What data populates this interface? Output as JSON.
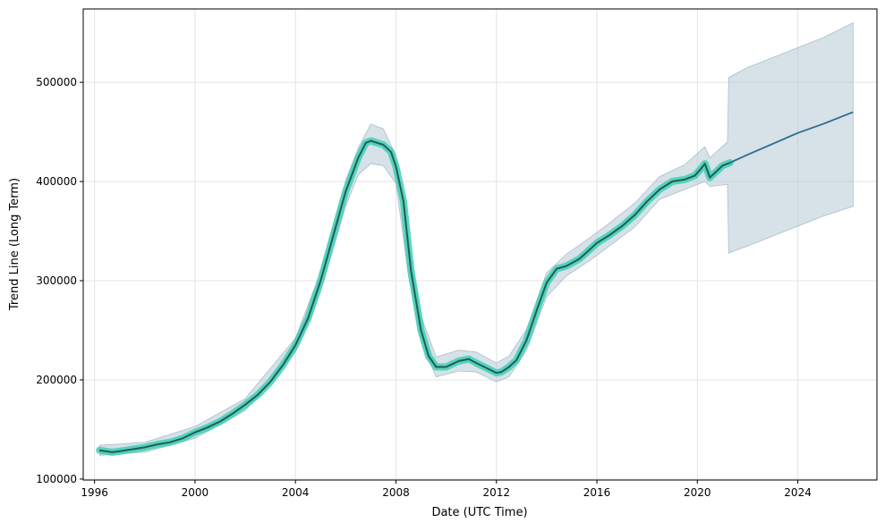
{
  "chart_data": {
    "type": "line",
    "title": "",
    "xlabel": "Date (UTC Time)",
    "ylabel": "Trend Line (Long Term)",
    "xlim": [
      1995.55,
      2027.15
    ],
    "ylim": [
      99000,
      574000
    ],
    "x_ticks": [
      1996,
      2000,
      2004,
      2008,
      2012,
      2016,
      2020,
      2024
    ],
    "x_tick_labels": [
      "1996",
      "2000",
      "2004",
      "2008",
      "2012",
      "2016",
      "2020",
      "2024"
    ],
    "y_ticks": [
      100000,
      200000,
      300000,
      400000,
      500000
    ],
    "y_tick_labels": [
      "100000",
      "200000",
      "300000",
      "400000",
      "500000"
    ],
    "grid": true,
    "colors": {
      "history_line": "#1f5c5c",
      "history_band": "#40d0b0",
      "forecast_line": "#2e6b8f",
      "uncertainty_band": "#b4c8d6"
    },
    "series": [
      {
        "role": "history",
        "x": [
          1996.2,
          1996.7,
          1997.0,
          1997.5,
          1998.0,
          1998.5,
          1999.0,
          1999.5,
          2000.0,
          2000.5,
          2001.0,
          2001.5,
          2002.0,
          2002.5,
          2003.0,
          2003.5,
          2004.0,
          2004.5,
          2005.0,
          2005.5,
          2006.0,
          2006.5,
          2006.8,
          2007.0,
          2007.5,
          2007.8,
          2008.0,
          2008.3,
          2008.6,
          2009.0,
          2009.3,
          2009.6,
          2010.0,
          2010.5,
          2010.9,
          2011.2,
          2011.6,
          2012.0,
          2012.2,
          2012.5,
          2012.8,
          2013.2,
          2013.6,
          2014.0,
          2014.4,
          2014.8,
          2015.3,
          2015.7,
          2016.0,
          2016.5,
          2017.0,
          2017.5,
          2018.0,
          2018.5,
          2019.0,
          2019.5,
          2019.9,
          2020.15,
          2020.3,
          2020.5,
          2020.75,
          2021.0,
          2021.3
        ],
        "values": [
          129000,
          127000,
          128000,
          130000,
          132000,
          135000,
          137000,
          141000,
          147000,
          152000,
          158000,
          166000,
          175000,
          185000,
          198000,
          215000,
          235000,
          262000,
          300000,
          345000,
          390000,
          424000,
          439000,
          441000,
          437000,
          430000,
          415000,
          380000,
          310000,
          250000,
          224000,
          213000,
          213000,
          219000,
          221000,
          217000,
          212000,
          207000,
          208000,
          213000,
          220000,
          240000,
          270000,
          298000,
          312000,
          315000,
          322000,
          331000,
          338000,
          346000,
          355000,
          366000,
          380000,
          392000,
          400000,
          402000,
          406000,
          413000,
          418000,
          404000,
          410000,
          416000,
          419000
        ]
      },
      {
        "role": "forecast",
        "x": [
          2021.3,
          2022.0,
          2023.0,
          2024.0,
          2025.0,
          2026.2
        ],
        "values": [
          419000,
          427000,
          438000,
          449000,
          458000,
          470000
        ]
      }
    ],
    "uncertainty_band": {
      "x": [
        1996.2,
        1998.0,
        2000.0,
        2002.0,
        2004.0,
        2005.0,
        2006.0,
        2006.5,
        2007.0,
        2007.5,
        2008.0,
        2008.5,
        2009.0,
        2009.6,
        2010.5,
        2011.2,
        2012.0,
        2012.5,
        2013.2,
        2014.0,
        2014.8,
        2015.7,
        2016.5,
        2017.5,
        2018.5,
        2019.5,
        2020.3,
        2020.5,
        2021.2,
        2021.25,
        2022.0,
        2023.0,
        2024.0,
        2025.0,
        2026.2
      ],
      "upper": [
        134000,
        137000,
        153000,
        181000,
        242000,
        309000,
        401000,
        434000,
        458000,
        453000,
        426000,
        338000,
        264000,
        223000,
        230000,
        228000,
        217000,
        224000,
        251000,
        308000,
        327000,
        343000,
        358000,
        378000,
        405000,
        417000,
        435000,
        424000,
        440000,
        505000,
        515000,
        525000,
        535000,
        545000,
        560000
      ],
      "lower": [
        124000,
        127000,
        141000,
        169000,
        228000,
        289000,
        375000,
        407000,
        418000,
        416000,
        398000,
        305000,
        238000,
        203000,
        209000,
        208000,
        198000,
        203000,
        230000,
        284000,
        305000,
        320000,
        335000,
        354000,
        382000,
        392000,
        400000,
        395000,
        397000,
        328000,
        335000,
        345000,
        355000,
        365000,
        375000
      ]
    }
  }
}
